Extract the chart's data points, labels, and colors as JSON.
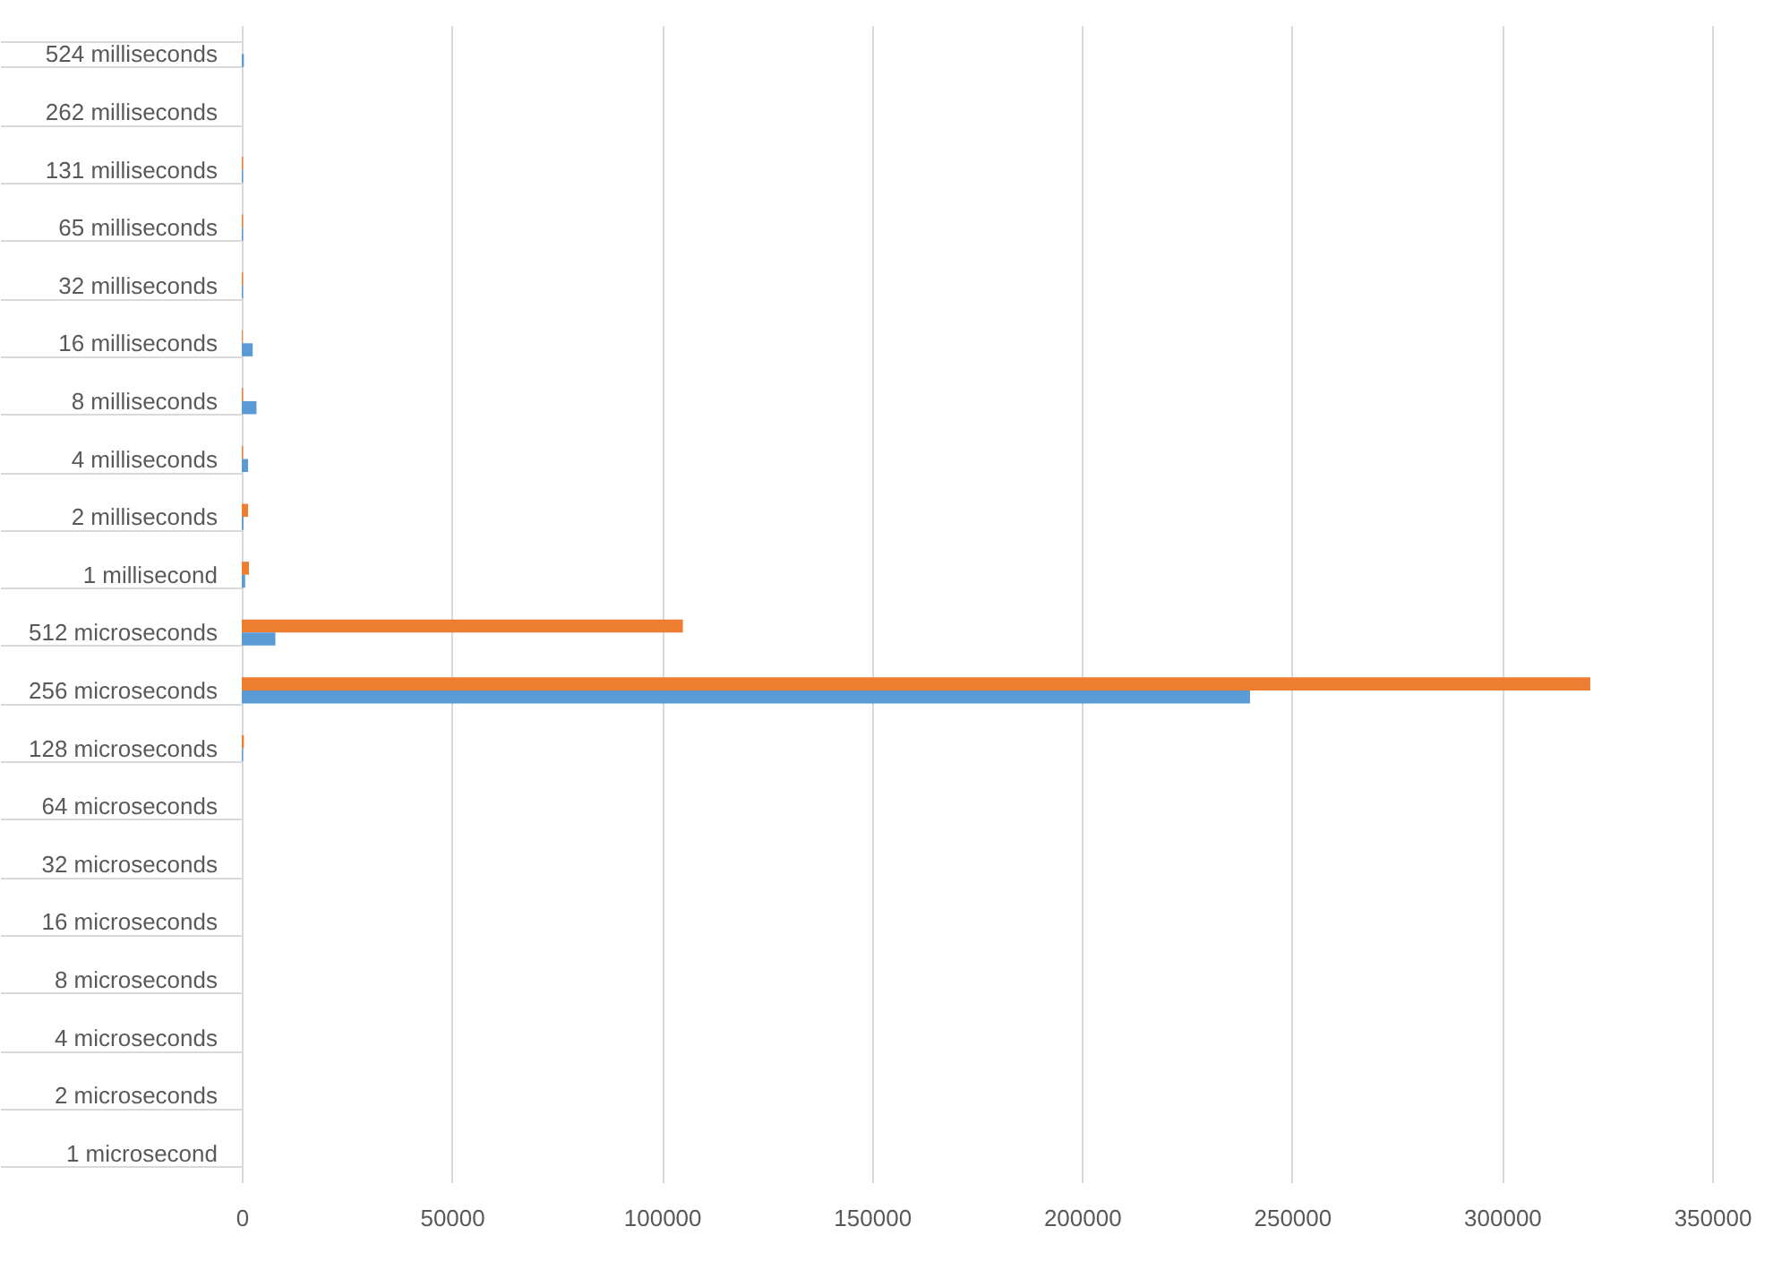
{
  "chart_data": {
    "type": "bar",
    "orientation": "horizontal",
    "categories": [
      "524 milliseconds",
      "262 milliseconds",
      "131 milliseconds",
      "65 milliseconds",
      "32 milliseconds",
      "16 milliseconds",
      "8 milliseconds",
      "4 milliseconds",
      "2 milliseconds",
      "1 millisecond",
      "512 microseconds",
      "256 microseconds",
      "128 microseconds",
      "64 microseconds",
      "32 microseconds",
      "16 microseconds",
      "8 microseconds",
      "4 microseconds",
      "2 microseconds",
      "1 microsecond"
    ],
    "series": [
      {
        "color": "#ed7d31",
        "values": [
          0,
          0,
          300,
          300,
          300,
          200,
          300,
          300,
          1500,
          1700,
          105000,
          321000,
          500,
          0,
          0,
          0,
          0,
          0,
          0,
          0
        ]
      },
      {
        "color": "#5b9bd5",
        "values": [
          500,
          0,
          300,
          300,
          300,
          2600,
          3500,
          1500,
          400,
          800,
          8000,
          240000,
          300,
          0,
          0,
          0,
          0,
          0,
          0,
          0
        ]
      }
    ],
    "xlim": [
      0,
      350000
    ],
    "xticks": [
      0,
      50000,
      100000,
      150000,
      200000,
      250000,
      300000,
      350000
    ],
    "grid": "x"
  }
}
